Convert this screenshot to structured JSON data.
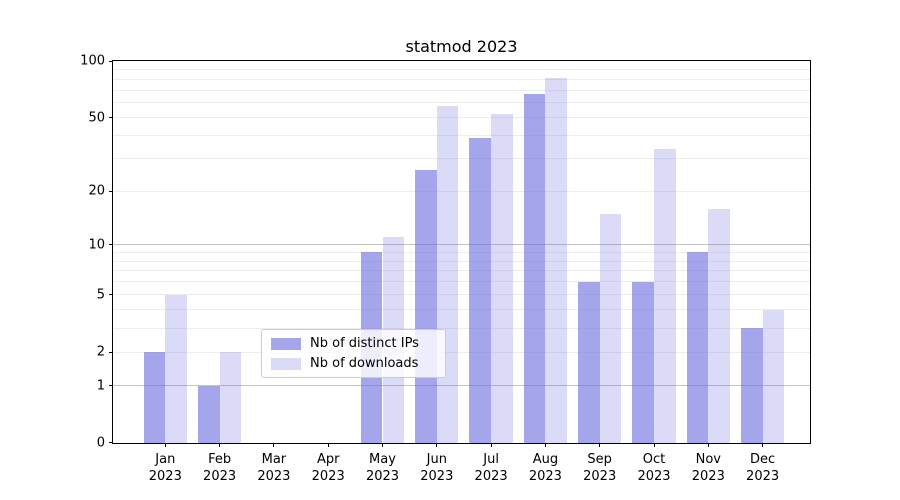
{
  "chart_data": {
    "type": "bar",
    "title": "statmod 2023",
    "categories": [
      "Jan",
      "Feb",
      "Mar",
      "Apr",
      "May",
      "Jun",
      "Jul",
      "Aug",
      "Sep",
      "Oct",
      "Nov",
      "Dec"
    ],
    "category_year": "2023",
    "series": [
      {
        "name": "Nb of distinct IPs",
        "color": "rgba(110,110,224,0.62)",
        "values": [
          2,
          1,
          0,
          0,
          9,
          26,
          39,
          67,
          6,
          6,
          9,
          3
        ]
      },
      {
        "name": "Nb of downloads",
        "color": "rgba(110,110,224,0.25)",
        "values": [
          5,
          2,
          0,
          0,
          11,
          58,
          52,
          81,
          15,
          34,
          16,
          4
        ]
      }
    ],
    "y_axis": {
      "scale": "log1p",
      "lim": [
        0,
        100
      ],
      "tick_labels": [
        0,
        1,
        2,
        5,
        10,
        20,
        50,
        100
      ],
      "major_gridlines": [
        1,
        10,
        100
      ],
      "minor_gridlines": [
        2,
        3,
        4,
        5,
        6,
        7,
        8,
        9,
        20,
        30,
        40,
        50,
        60,
        70,
        80,
        90
      ]
    },
    "legend": {
      "position": "lower center"
    },
    "grid": true,
    "colors": {
      "major_grid": "#c3c3c3",
      "minor_grid": "#ececec",
      "spine": "#000000",
      "text": "#000000",
      "background": "#ffffff"
    }
  }
}
